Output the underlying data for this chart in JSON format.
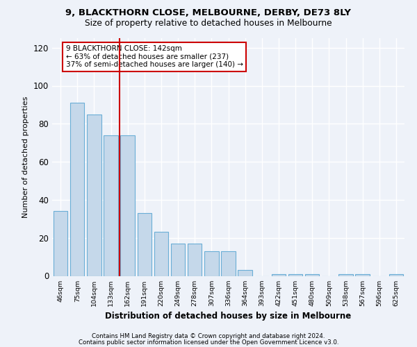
{
  "title1": "9, BLACKTHORN CLOSE, MELBOURNE, DERBY, DE73 8LY",
  "title2": "Size of property relative to detached houses in Melbourne",
  "xlabel": "Distribution of detached houses by size in Melbourne",
  "ylabel": "Number of detached properties",
  "categories": [
    "46sqm",
    "75sqm",
    "104sqm",
    "133sqm",
    "162sqm",
    "191sqm",
    "220sqm",
    "249sqm",
    "278sqm",
    "307sqm",
    "336sqm",
    "364sqm",
    "393sqm",
    "422sqm",
    "451sqm",
    "480sqm",
    "509sqm",
    "538sqm",
    "567sqm",
    "596sqm",
    "625sqm"
  ],
  "values": [
    34,
    91,
    85,
    74,
    74,
    33,
    23,
    17,
    17,
    13,
    13,
    3,
    0,
    1,
    1,
    1,
    0,
    1,
    1,
    0,
    1
  ],
  "bar_color": "#c5d8ea",
  "bar_edge_color": "#6aaed6",
  "vline_color": "#cc0000",
  "annotation_text": "9 BLACKTHORN CLOSE: 142sqm\n← 63% of detached houses are smaller (237)\n37% of semi-detached houses are larger (140) →",
  "annotation_box_color": "#ffffff",
  "annotation_box_edgecolor": "#cc0000",
  "ylim": [
    0,
    125
  ],
  "yticks": [
    0,
    20,
    40,
    60,
    80,
    100,
    120
  ],
  "background_color": "#eef2f9",
  "grid_color": "#ffffff",
  "footer1": "Contains HM Land Registry data © Crown copyright and database right 2024.",
  "footer2": "Contains public sector information licensed under the Open Government Licence v3.0."
}
